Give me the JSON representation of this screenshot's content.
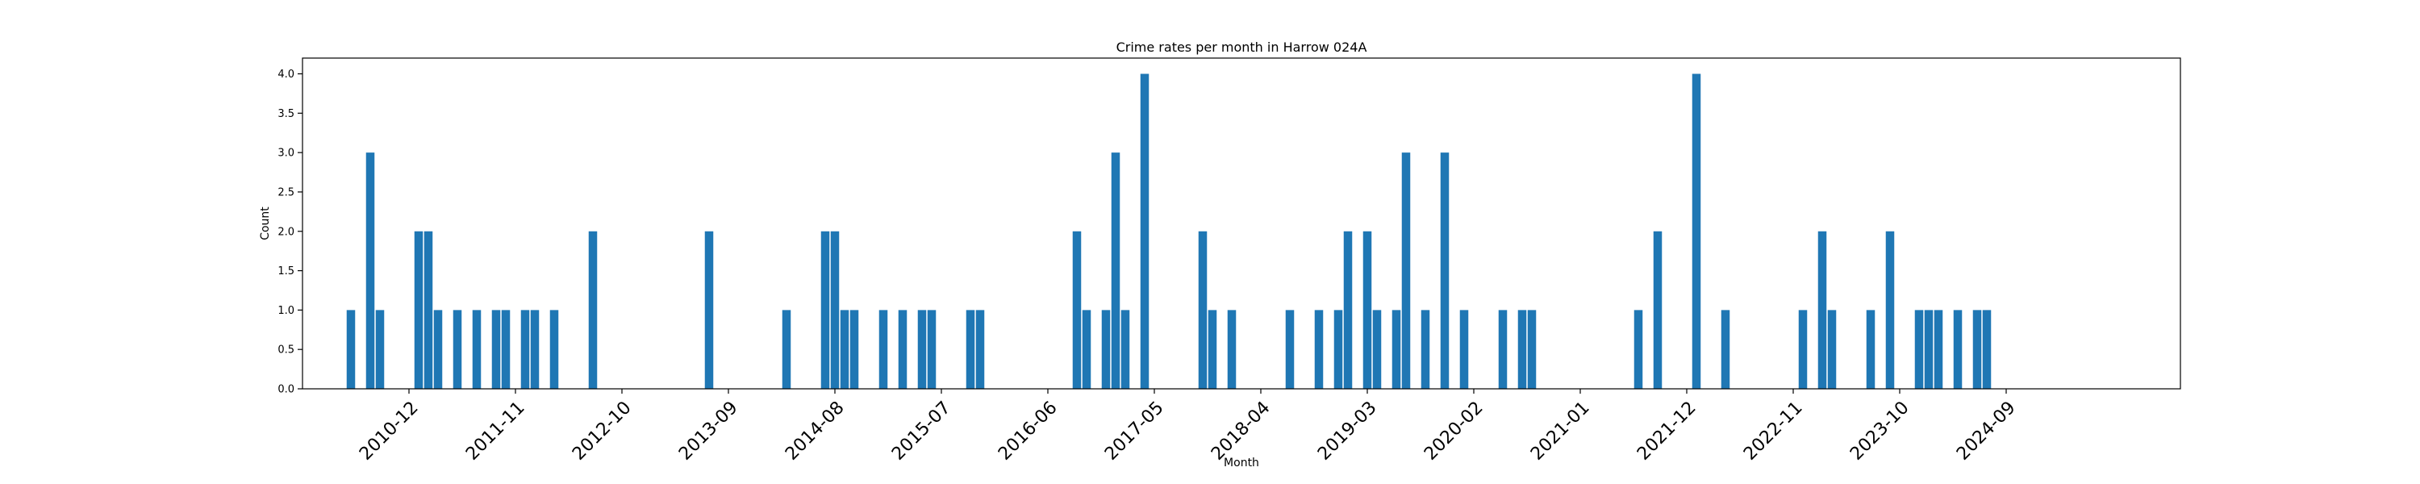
{
  "chart_data": {
    "type": "bar",
    "title": "Crime rates per month in Harrow 024A",
    "xlabel": "Month",
    "ylabel": "Count",
    "ylim": [
      0,
      4.2
    ],
    "yticks": [
      "0.0",
      "0.5",
      "1.0",
      "1.5",
      "2.0",
      "2.5",
      "3.0",
      "3.5",
      "4.0"
    ],
    "xticks": [
      "2010-12",
      "2011-11",
      "2012-10",
      "2013-09",
      "2014-08",
      "2015-07",
      "2016-06",
      "2017-05",
      "2018-04",
      "2019-03",
      "2020-02",
      "2021-01",
      "2021-12",
      "2022-11",
      "2023-10",
      "2024-09"
    ],
    "x_range": [
      "2010-01",
      "2026-03"
    ],
    "grid": false,
    "bar_color": "#1f77b4",
    "months": [
      "2010-06",
      "2010-08",
      "2010-09",
      "2011-01",
      "2011-02",
      "2011-03",
      "2011-05",
      "2011-07",
      "2011-09",
      "2011-10",
      "2011-12",
      "2012-01",
      "2012-03",
      "2012-07",
      "2013-07",
      "2014-03",
      "2014-07",
      "2014-08",
      "2014-09",
      "2014-10",
      "2015-01",
      "2015-03",
      "2015-05",
      "2015-06",
      "2015-10",
      "2015-11",
      "2016-09",
      "2016-10",
      "2016-12",
      "2017-01",
      "2017-02",
      "2017-04",
      "2017-10",
      "2017-11",
      "2018-01",
      "2018-07",
      "2018-10",
      "2018-12",
      "2019-01",
      "2019-03",
      "2019-04",
      "2019-06",
      "2019-07",
      "2019-09",
      "2019-11",
      "2020-01",
      "2020-05",
      "2020-07",
      "2020-08",
      "2021-07",
      "2021-09",
      "2022-01",
      "2022-04",
      "2022-12",
      "2023-02",
      "2023-03",
      "2023-07",
      "2023-09",
      "2023-12",
      "2024-01",
      "2024-02",
      "2024-04",
      "2024-06",
      "2024-07"
    ],
    "values": [
      1,
      3,
      1,
      2,
      2,
      1,
      1,
      1,
      1,
      1,
      1,
      1,
      1,
      2,
      2,
      1,
      2,
      2,
      1,
      1,
      1,
      1,
      1,
      1,
      1,
      1,
      2,
      1,
      1,
      3,
      1,
      4,
      2,
      1,
      1,
      1,
      1,
      1,
      2,
      2,
      1,
      1,
      3,
      1,
      3,
      1,
      1,
      1,
      1,
      1,
      2,
      4,
      1,
      1,
      2,
      1,
      1,
      2,
      1,
      1,
      1,
      1,
      1,
      1
    ]
  }
}
